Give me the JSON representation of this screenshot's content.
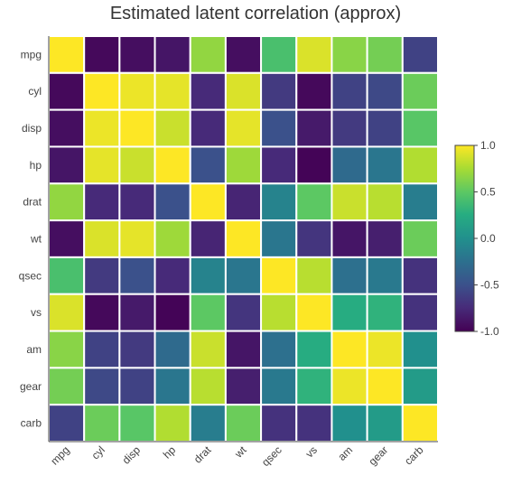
{
  "chart_data": {
    "type": "heatmap",
    "title": "Estimated latent correlation (approx)",
    "xlabel": "",
    "ylabel": "",
    "variables": [
      "mpg",
      "cyl",
      "disp",
      "hp",
      "drat",
      "wt",
      "qsec",
      "vs",
      "am",
      "gear",
      "carb"
    ],
    "zlim": [
      -1,
      1
    ],
    "colorscale": "viridis",
    "colorbar_ticks": [
      "1.0",
      "0.5",
      "0.0",
      "-0.5",
      "-1.0"
    ],
    "colorbar_tick_values": [
      1.0,
      0.5,
      0.0,
      -0.5,
      -1.0
    ],
    "values": [
      [
        1.0,
        -0.95,
        -0.92,
        -0.88,
        0.68,
        -0.92,
        0.42,
        0.9,
        0.65,
        0.58,
        -0.6
      ],
      [
        -0.95,
        1.0,
        0.95,
        0.93,
        -0.75,
        0.9,
        -0.65,
        -0.95,
        -0.6,
        -0.55,
        0.55
      ],
      [
        -0.92,
        0.95,
        1.0,
        0.85,
        -0.75,
        0.93,
        -0.5,
        -0.85,
        -0.65,
        -0.6,
        0.48
      ],
      [
        -0.88,
        0.93,
        0.85,
        1.0,
        -0.5,
        0.72,
        -0.75,
        -0.98,
        -0.3,
        -0.2,
        0.78
      ],
      [
        0.68,
        -0.75,
        -0.75,
        -0.5,
        1.0,
        -0.78,
        -0.1,
        0.5,
        0.85,
        0.8,
        -0.15
      ],
      [
        -0.92,
        0.9,
        0.93,
        0.72,
        -0.78,
        1.0,
        -0.2,
        -0.68,
        -0.88,
        -0.82,
        0.55
      ],
      [
        0.42,
        -0.65,
        -0.5,
        -0.75,
        -0.1,
        -0.2,
        1.0,
        0.8,
        -0.25,
        -0.18,
        -0.7
      ],
      [
        0.9,
        -0.95,
        -0.85,
        -0.98,
        0.5,
        -0.68,
        0.8,
        1.0,
        0.25,
        0.3,
        -0.7
      ],
      [
        0.65,
        -0.6,
        -0.65,
        -0.3,
        0.85,
        -0.88,
        -0.25,
        0.25,
        1.0,
        0.95,
        0.0
      ],
      [
        0.58,
        -0.55,
        -0.6,
        -0.2,
        0.8,
        -0.82,
        -0.18,
        0.3,
        0.95,
        1.0,
        0.1
      ],
      [
        -0.6,
        0.55,
        0.48,
        0.78,
        -0.15,
        0.55,
        -0.7,
        -0.7,
        0.0,
        0.1,
        1.0
      ]
    ]
  }
}
